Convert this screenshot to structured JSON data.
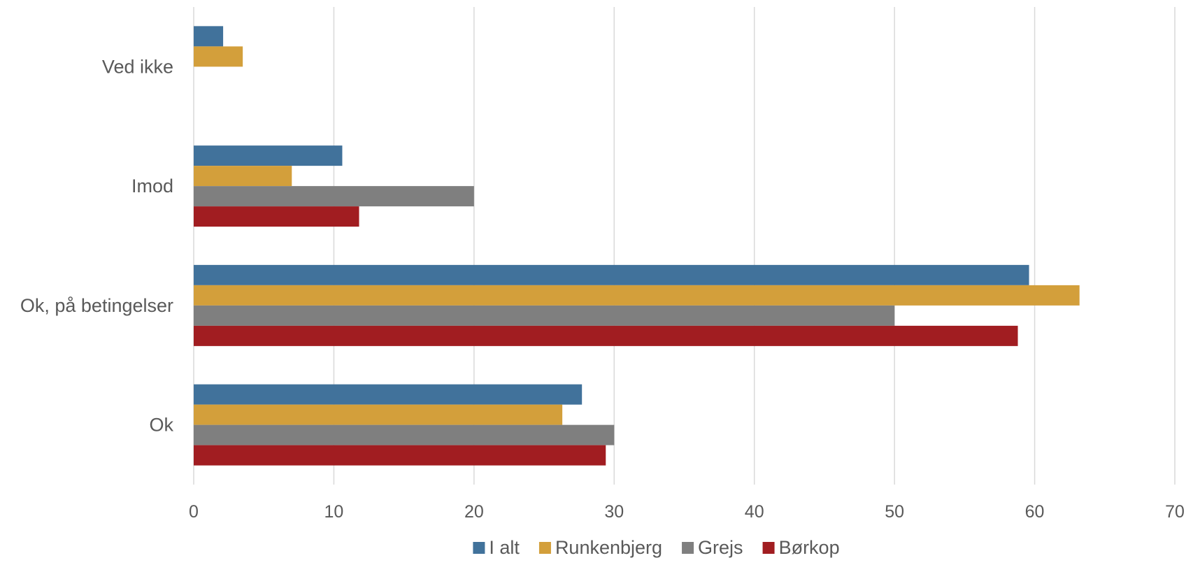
{
  "chart_data": {
    "type": "bar",
    "orientation": "horizontal",
    "categories": [
      "Ok",
      "Ok, på betingelser",
      "Imod",
      "Ved ikke"
    ],
    "series": [
      {
        "name": "I alt",
        "color": "#41729B",
        "values": [
          27.7,
          59.6,
          10.6,
          2.1
        ]
      },
      {
        "name": "Runkenbjerg",
        "color": "#D39F3B",
        "values": [
          26.3,
          63.2,
          7.0,
          3.5
        ]
      },
      {
        "name": "Grejs",
        "color": "#7F7F7F",
        "values": [
          30.0,
          50.0,
          20.0,
          0
        ]
      },
      {
        "name": "Børkop",
        "color": "#A11D21",
        "values": [
          29.4,
          58.8,
          11.8,
          0
        ]
      }
    ],
    "xlim": [
      0,
      70
    ],
    "xticks": [
      "0",
      "10",
      "20",
      "30",
      "40",
      "50",
      "60",
      "70"
    ],
    "title": "",
    "xlabel": "",
    "ylabel": "",
    "grid": "vertical",
    "legend": "bottom-center"
  }
}
